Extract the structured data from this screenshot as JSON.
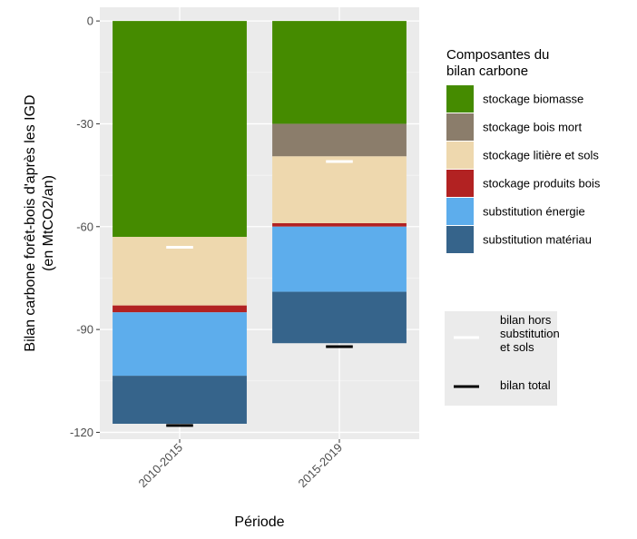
{
  "chart_data": {
    "type": "bar",
    "stacked": true,
    "xlabel": "Période",
    "ylabel_lines": [
      "Bilan carbone forêt-bois d'après les IGD",
      "(en MtCO2/an)"
    ],
    "ylim": [
      -122,
      4
    ],
    "yticks": [
      0,
      -30,
      -60,
      -90,
      -120
    ],
    "grid": true,
    "legend_position": "right",
    "categories": [
      "2010-2015",
      "2015-2019"
    ],
    "series": [
      {
        "name": "stockage biomasse",
        "color": "#458B00",
        "values": [
          -63,
          -30
        ]
      },
      {
        "name": "stockage bois mort",
        "color": "#8B7D6B",
        "values": [
          0,
          -9.5
        ]
      },
      {
        "name": "stockage litière et sols",
        "color": "#EED8AE",
        "values": [
          -20,
          -19.5
        ]
      },
      {
        "name": "stockage produits bois",
        "color": "#B22222",
        "values": [
          -2,
          -1
        ]
      },
      {
        "name": "substitution énergie",
        "color": "#5DADEC",
        "values": [
          -18.5,
          -19
        ]
      },
      {
        "name": "substitution matériau",
        "color": "#36648B",
        "values": [
          -14,
          -15
        ]
      }
    ],
    "markers": [
      {
        "name_lines": [
          "bilan hors",
          "substitution",
          "et sols"
        ],
        "color": "#FFFFFF",
        "values": [
          -66,
          -41
        ]
      },
      {
        "name_lines": [
          "bilan total"
        ],
        "color": "#000000",
        "values": [
          -118,
          -95
        ]
      }
    ],
    "legend_title_lines": [
      "Composantes du",
      "bilan carbone"
    ]
  }
}
